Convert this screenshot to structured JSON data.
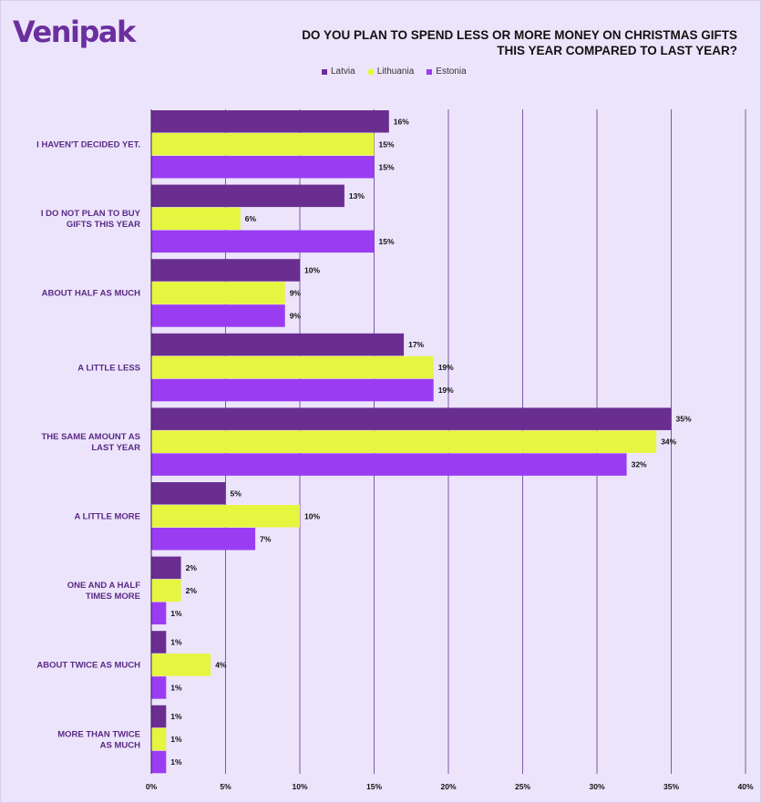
{
  "brand": {
    "logo_text": "Venipak"
  },
  "colors": {
    "background": "#ece4fb",
    "gridline": "#5b2a86",
    "category_text": "#5b2a86"
  },
  "chart_data": {
    "type": "bar",
    "orientation": "horizontal",
    "title": "DO YOU PLAN TO SPEND LESS OR MORE MONEY ON CHRISTMAS GIFTS THIS YEAR COMPARED TO LAST YEAR?",
    "title_lines": [
      "DO YOU PLAN TO SPEND LESS OR MORE MONEY ON CHRISTMAS GIFTS",
      "THIS YEAR COMPARED TO LAST YEAR?"
    ],
    "legend_position": "top",
    "grid": true,
    "xlim": [
      0,
      40
    ],
    "x_ticks": [
      {
        "value": 0,
        "label": "0%"
      },
      {
        "value": 5,
        "label": "5%"
      },
      {
        "value": 10,
        "label": "10%"
      },
      {
        "value": 15,
        "label": "15%"
      },
      {
        "value": 20,
        "label": "20%"
      },
      {
        "value": 25,
        "label": "25%"
      },
      {
        "value": 30,
        "label": "30%"
      },
      {
        "value": 35,
        "label": "35%"
      },
      {
        "value": 40,
        "label": "40%"
      }
    ],
    "categories": [
      [
        "I HAVEN'T DECIDED YET."
      ],
      [
        "I DO NOT PLAN TO BUY",
        "GIFTS THIS YEAR"
      ],
      [
        "ABOUT HALF AS MUCH"
      ],
      [
        "A LITTLE LESS"
      ],
      [
        "THE SAME AMOUNT AS",
        "LAST YEAR"
      ],
      [
        "A LITTLE MORE"
      ],
      [
        "ONE AND A HALF",
        "TIMES MORE"
      ],
      [
        "ABOUT TWICE AS MUCH"
      ],
      [
        "MORE THAN TWICE",
        "AS MUCH"
      ]
    ],
    "series": [
      {
        "name": "Latvia",
        "color": "#6a2e91",
        "values": [
          16,
          13,
          10,
          17,
          35,
          5,
          2,
          1,
          1
        ],
        "labels": [
          "16%",
          "13%",
          "10%",
          "17%",
          "35%",
          "5%",
          "2%",
          "1%",
          "1%"
        ]
      },
      {
        "name": "Lithuania",
        "color": "#e6f53f",
        "values": [
          15,
          6,
          9,
          19,
          34,
          10,
          2,
          4,
          1
        ],
        "labels": [
          "15%",
          "6%",
          "9%",
          "19%",
          "34%",
          "10%",
          "2%",
          "4%",
          "1%"
        ]
      },
      {
        "name": "Estonia",
        "color": "#9a3df2",
        "values": [
          15,
          15,
          9,
          19,
          32,
          7,
          1,
          1,
          1
        ],
        "labels": [
          "15%",
          "15%",
          "9%",
          "19%",
          "32%",
          "7%",
          "1%",
          "1%",
          "1%"
        ]
      }
    ]
  }
}
